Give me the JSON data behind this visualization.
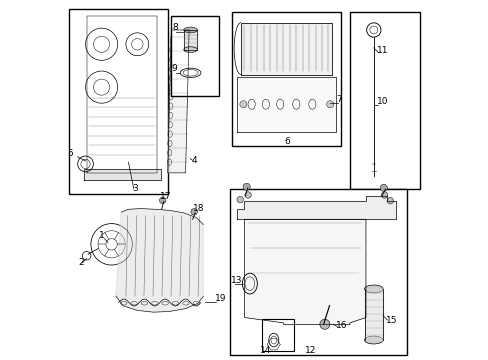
{
  "background_color": "#ffffff",
  "line_color": "#000000",
  "text_color": "#000000",
  "figure_width": 4.89,
  "figure_height": 3.6,
  "dpi": 100
}
